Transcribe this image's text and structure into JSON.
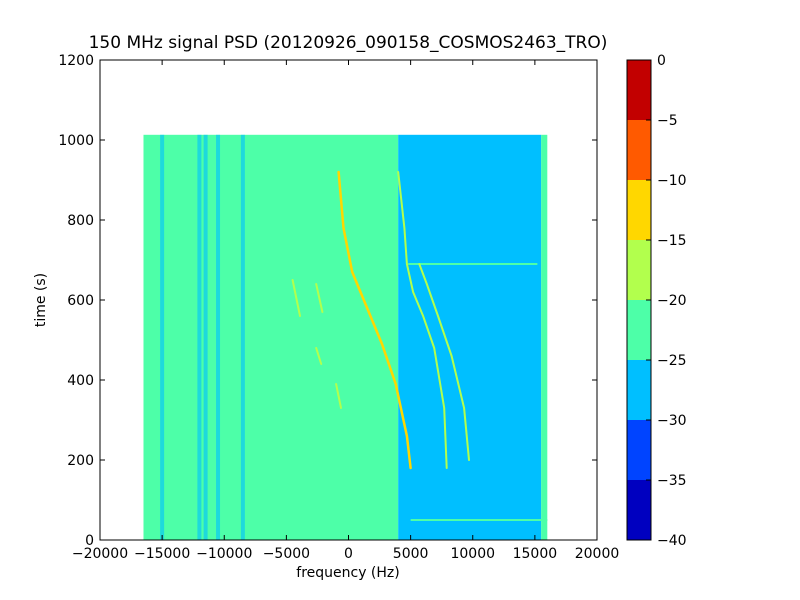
{
  "chart_data": {
    "type": "heatmap",
    "title": "150 MHz signal PSD (20120926_090158_COSMOS2463_TRO)",
    "xlabel": "frequency (Hz)",
    "ylabel": "time (s)",
    "xlim": [
      -20000,
      20000
    ],
    "ylim": [
      0,
      1200
    ],
    "xticks": [
      -20000,
      -15000,
      -10000,
      -5000,
      0,
      5000,
      10000,
      15000,
      20000
    ],
    "xtick_labels": [
      "−20000",
      "−15000",
      "−10000",
      "−5000",
      "0",
      "5000",
      "10000",
      "15000",
      "20000"
    ],
    "yticks": [
      0,
      200,
      400,
      600,
      800,
      1000,
      1200
    ],
    "ytick_labels": [
      "0",
      "200",
      "400",
      "600",
      "800",
      "1000",
      "1200"
    ],
    "data_extent": {
      "x": [
        -16500,
        16000
      ],
      "y": [
        0,
        1013
      ]
    },
    "background_regions": [
      {
        "x": [
          -16500,
          4000
        ],
        "psd_db": -22.5
      },
      {
        "x": [
          4000,
          15500
        ],
        "psd_db": -27.5
      },
      {
        "x": [
          15500,
          16000
        ],
        "psd_db": -22.5
      }
    ],
    "vertical_bands": [
      {
        "x": -15000,
        "psd_db": -27.5
      },
      {
        "x": -12000,
        "psd_db": -27.5
      },
      {
        "x": -11500,
        "psd_db": -27.5
      },
      {
        "x": -10500,
        "psd_db": -27.5
      },
      {
        "x": -8500,
        "psd_db": -27.5
      }
    ],
    "horizontal_lines": [
      {
        "y": 50,
        "x": [
          5000,
          16000
        ],
        "psd_db": -22.5
      },
      {
        "y": 690,
        "x": [
          4800,
          15200
        ],
        "psd_db": -22.5
      }
    ],
    "traces": [
      {
        "psd_db": -12.5,
        "points": [
          [
            -800,
            920
          ],
          [
            -400,
            780
          ],
          [
            300,
            670
          ],
          [
            1500,
            580
          ],
          [
            2700,
            490
          ],
          [
            3800,
            390
          ],
          [
            4700,
            260
          ],
          [
            5000,
            180
          ]
        ]
      },
      {
        "psd_db": -17.5,
        "points": [
          [
            4000,
            920
          ],
          [
            4500,
            780
          ],
          [
            4700,
            690
          ],
          [
            5200,
            620
          ],
          [
            6000,
            560
          ],
          [
            6900,
            480
          ],
          [
            7700,
            330
          ],
          [
            7900,
            180
          ]
        ]
      },
      {
        "psd_db": -17.5,
        "points": [
          [
            5700,
            690
          ],
          [
            6300,
            640
          ],
          [
            7200,
            560
          ],
          [
            8300,
            460
          ],
          [
            9300,
            330
          ],
          [
            9700,
            200
          ]
        ]
      },
      {
        "psd_db": -20.0,
        "points": [
          [
            -4500,
            650
          ],
          [
            -3900,
            560
          ]
        ]
      },
      {
        "psd_db": -20.0,
        "points": [
          [
            -2600,
            640
          ],
          [
            -2100,
            570
          ]
        ]
      },
      {
        "psd_db": -20.0,
        "points": [
          [
            -1000,
            390
          ],
          [
            -600,
            330
          ]
        ]
      },
      {
        "psd_db": -20.0,
        "points": [
          [
            -2600,
            480
          ],
          [
            -2200,
            440
          ]
        ]
      }
    ],
    "colorbar": {
      "levels": [
        -40,
        -35,
        -30,
        -25,
        -20,
        -15,
        -10,
        -5,
        0
      ],
      "tick_labels": [
        "−40",
        "−35",
        "−30",
        "−25",
        "−20",
        "−15",
        "−10",
        "−5",
        "0"
      ],
      "colors": [
        "#0000c0",
        "#0044ff",
        "#00bfff",
        "#4dffa8",
        "#b2ff4d",
        "#ffd700",
        "#ff5a00",
        "#c20000"
      ]
    },
    "grid": false,
    "legend": "none"
  }
}
